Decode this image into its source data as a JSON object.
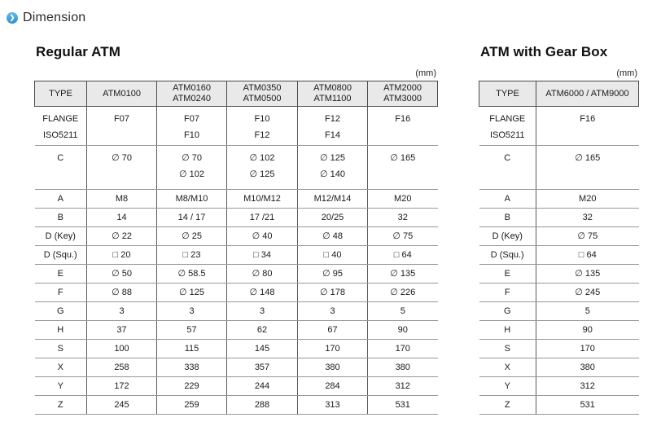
{
  "section": {
    "title": "Dimension",
    "accent_color": "#3a9ed6"
  },
  "tables": [
    {
      "title": "Regular ATM",
      "unit": "(mm)",
      "header": [
        "TYPE",
        "ATM0100",
        "ATM0160\nATM0240",
        "ATM0350\nATM0500",
        "ATM0800\nATM1100",
        "ATM2000\nATM3000"
      ],
      "rows": [
        {
          "label": "FLANGE\nISO5211",
          "values": [
            "F07",
            "F07\nF10",
            "F10\nF12",
            "F12\nF14",
            "F16"
          ]
        },
        {
          "label": "C",
          "values": [
            "∅ 70",
            "∅ 70\n∅ 102",
            "∅ 102\n∅ 125",
            "∅ 125\n∅ 140",
            "∅ 165"
          ]
        },
        {
          "label": "A",
          "values": [
            "M8",
            "M8/M10",
            "M10/M12",
            "M12/M14",
            "M20"
          ]
        },
        {
          "label": "B",
          "values": [
            "14",
            "14 / 17",
            "17 /21",
            "20/25",
            "32"
          ]
        },
        {
          "label": "D (Key)",
          "values": [
            "∅ 22",
            "∅ 25",
            "∅ 40",
            "∅ 48",
            "∅ 75"
          ]
        },
        {
          "label": "D (Squ.)",
          "values": [
            "□ 20",
            "□ 23",
            "□ 34",
            "□ 40",
            "□ 64"
          ]
        },
        {
          "label": "E",
          "values": [
            "∅ 50",
            "∅ 58.5",
            "∅ 80",
            "∅ 95",
            "∅ 135"
          ]
        },
        {
          "label": "F",
          "values": [
            "∅ 88",
            "∅ 125",
            "∅ 148",
            "∅ 178",
            "∅ 226"
          ]
        },
        {
          "label": "G",
          "values": [
            "3",
            "3",
            "3",
            "3",
            "5"
          ]
        },
        {
          "label": "H",
          "values": [
            "37",
            "57",
            "62",
            "67",
            "90"
          ]
        },
        {
          "label": "S",
          "values": [
            "100",
            "115",
            "145",
            "170",
            "170"
          ]
        },
        {
          "label": "X",
          "values": [
            "258",
            "338",
            "357",
            "380",
            "380"
          ]
        },
        {
          "label": "Y",
          "values": [
            "172",
            "229",
            "244",
            "284",
            "312"
          ]
        },
        {
          "label": "Z",
          "values": [
            "245",
            "259",
            "288",
            "313",
            "531"
          ]
        }
      ]
    },
    {
      "title": "ATM with Gear Box",
      "unit": "(mm)",
      "header": [
        "TYPE",
        "ATM6000 / ATM9000"
      ],
      "rows": [
        {
          "label": "FLANGE\nISO5211",
          "values": [
            "F16"
          ]
        },
        {
          "label": "C",
          "values": [
            "∅ 165"
          ]
        },
        {
          "label": "A",
          "values": [
            "M20"
          ]
        },
        {
          "label": "B",
          "values": [
            "32"
          ]
        },
        {
          "label": "D (Key)",
          "values": [
            "∅ 75"
          ]
        },
        {
          "label": "D (Squ.)",
          "values": [
            "□ 64"
          ]
        },
        {
          "label": "E",
          "values": [
            "∅ 135"
          ]
        },
        {
          "label": "F",
          "values": [
            "∅ 245"
          ]
        },
        {
          "label": "G",
          "values": [
            "5"
          ]
        },
        {
          "label": "H",
          "values": [
            "90"
          ]
        },
        {
          "label": "S",
          "values": [
            "170"
          ]
        },
        {
          "label": "X",
          "values": [
            "380"
          ]
        },
        {
          "label": "Y",
          "values": [
            "312"
          ]
        },
        {
          "label": "Z",
          "values": [
            "531"
          ]
        }
      ]
    }
  ]
}
